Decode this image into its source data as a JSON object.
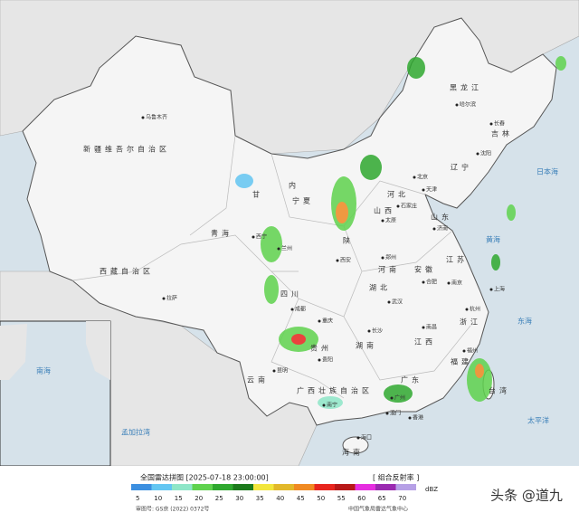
{
  "header": {
    "title": "全国雷达拼图 [2025-07-18 23:00:00]",
    "product": "[ 组合反射率 ]",
    "unit": "dBZ"
  },
  "legend": [
    {
      "value": 5,
      "color": "#3c8fe0"
    },
    {
      "value": 10,
      "color": "#63c6f2"
    },
    {
      "value": 15,
      "color": "#8ee6c8"
    },
    {
      "value": 20,
      "color": "#5fd24e"
    },
    {
      "value": 25,
      "color": "#2fa82f"
    },
    {
      "value": 30,
      "color": "#1c7a1c"
    },
    {
      "value": 35,
      "color": "#f2e63c"
    },
    {
      "value": 40,
      "color": "#e2b82a"
    },
    {
      "value": 45,
      "color": "#f08a22"
    },
    {
      "value": 50,
      "color": "#e8251e"
    },
    {
      "value": 55,
      "color": "#b81818"
    },
    {
      "value": 60,
      "color": "#e62ee0"
    },
    {
      "value": 65,
      "color": "#9a2ab0"
    },
    {
      "value": 70,
      "color": "#b6a0e6"
    }
  ],
  "places": [
    "乌鲁木齐",
    "新疆维吾尔自治区",
    "西藏自治区",
    "拉萨",
    "青海",
    "西宁",
    "甘",
    "内",
    "宁夏",
    "兰州",
    "黑龙江",
    "哈尔滨",
    "吉林",
    "长春",
    "辽宁",
    "沈阳",
    "北京",
    "天津",
    "河北",
    "石家庄",
    "山西",
    "太原",
    "山东",
    "济南",
    "河南",
    "郑州",
    "陕",
    "西安",
    "四川",
    "成都",
    "重庆",
    "湖北",
    "武汉",
    "安徽",
    "合肥",
    "江苏",
    "南京",
    "上海",
    "杭州",
    "浙江",
    "湖南",
    "长沙",
    "江西",
    "南昌",
    "贵州",
    "贵阳",
    "云南",
    "昆明",
    "广西壮族自治区",
    "南宁",
    "广东",
    "广州",
    "福建",
    "福州",
    "台湾",
    "香港",
    "澳门",
    "海南",
    "海口",
    "日本海",
    "黄海",
    "东海",
    "太平洋",
    "南海",
    "孟加拉湾"
  ],
  "footer": {
    "approval": "审图号: GS京 (2022) 0372号",
    "source": "中国气象局雷达气象中心"
  },
  "watermark": "头条 @道九"
}
